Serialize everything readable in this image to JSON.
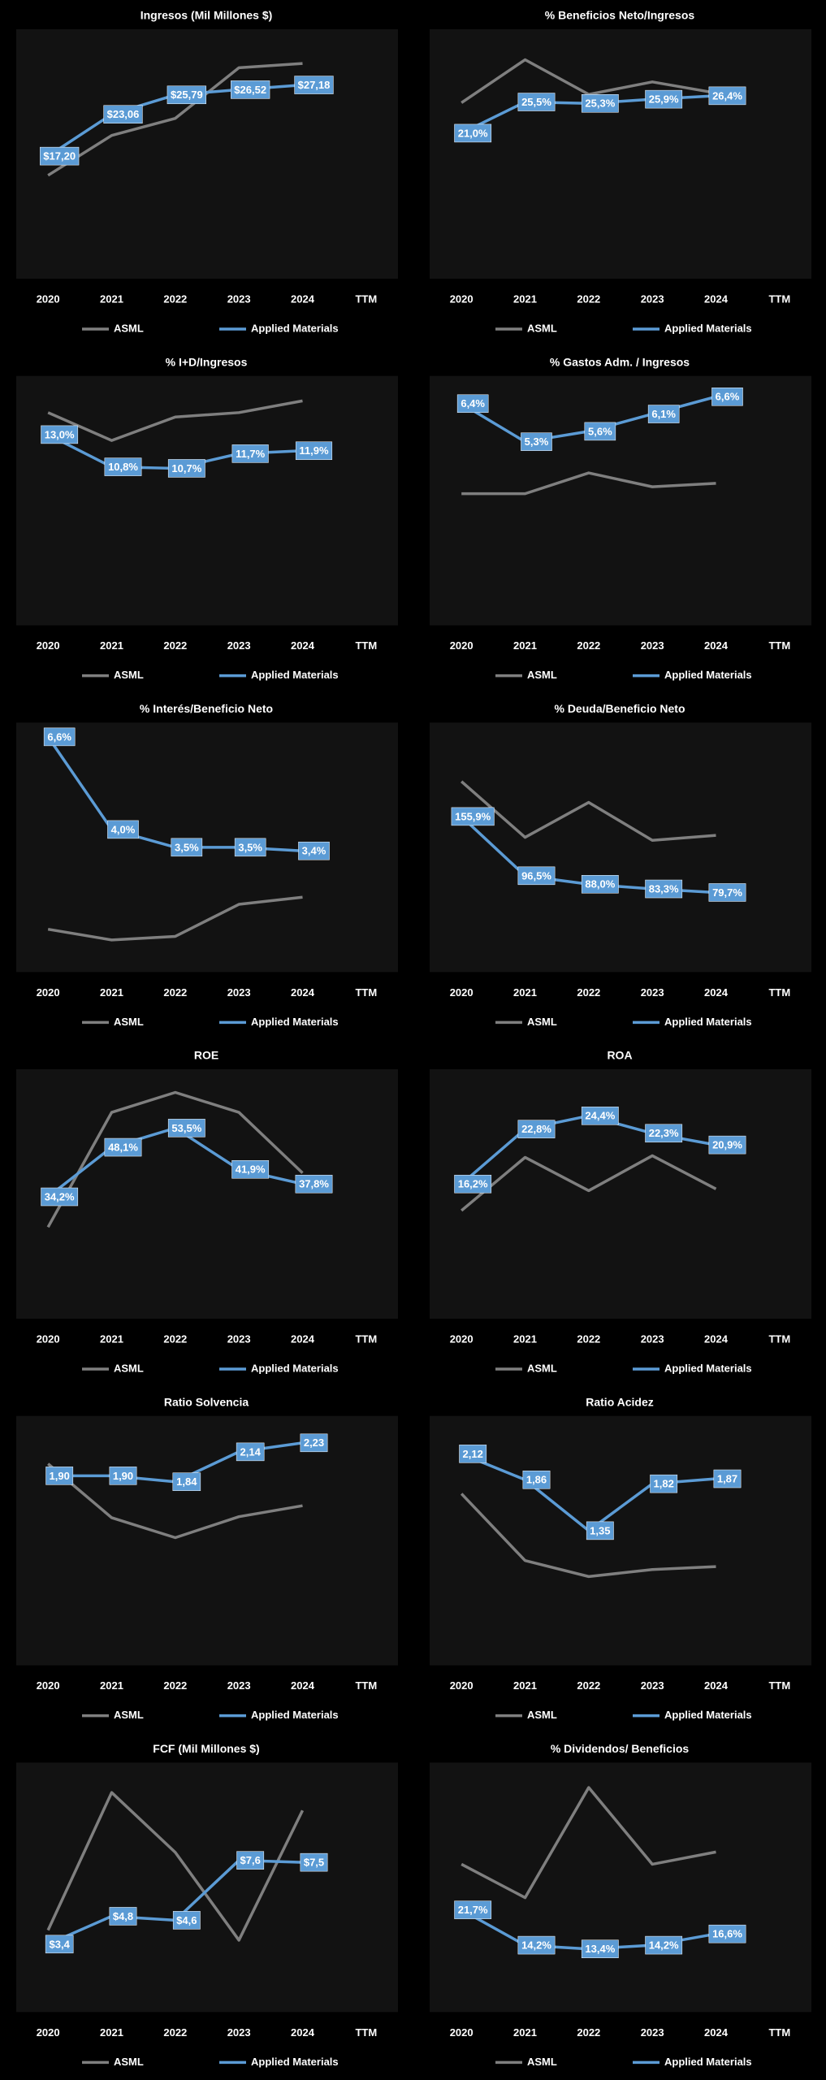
{
  "chart_data": [
    {
      "type": "line",
      "title": "Ingresos (Mil Millones $)",
      "categories": [
        "2020",
        "2021",
        "2022",
        "2023",
        "2024",
        "TTM"
      ],
      "ylim": [
        0,
        35
      ],
      "series": [
        {
          "name": "ASML",
          "color": "#7f7f7f",
          "values": [
            14.5,
            20.1,
            22.5,
            29.6,
            30.2,
            null
          ]
        },
        {
          "name": "Applied Materials",
          "color": "#5b9bd5",
          "values": [
            17.2,
            23.06,
            25.79,
            26.52,
            27.18,
            null
          ],
          "value_labels": [
            "$17,20",
            "$23,06",
            "$25,79",
            "$26,52",
            "$27,18",
            null
          ]
        }
      ]
    },
    {
      "type": "line",
      "title": "% Beneficios Neto/Ingresos",
      "categories": [
        "2020",
        "2021",
        "2022",
        "2023",
        "2024",
        "TTM"
      ],
      "ylim": [
        0,
        36
      ],
      "series": [
        {
          "name": "ASML",
          "color": "#7f7f7f",
          "values": [
            25.4,
            31.6,
            26.6,
            28.4,
            26.8,
            null
          ]
        },
        {
          "name": "Applied Materials",
          "color": "#5b9bd5",
          "values": [
            21.0,
            25.5,
            25.3,
            25.9,
            26.4,
            null
          ],
          "value_labels": [
            "21,0%",
            "25,5%",
            "25,3%",
            "25,9%",
            "26,4%",
            null
          ]
        }
      ]
    },
    {
      "type": "line",
      "title": "% I+D/Ingresos",
      "categories": [
        "2020",
        "2021",
        "2022",
        "2023",
        "2024",
        "TTM"
      ],
      "ylim": [
        0,
        17
      ],
      "series": [
        {
          "name": "ASML",
          "color": "#7f7f7f",
          "values": [
            14.5,
            12.6,
            14.2,
            14.5,
            15.3,
            null
          ]
        },
        {
          "name": "Applied Materials",
          "color": "#5b9bd5",
          "values": [
            13.0,
            10.8,
            10.7,
            11.7,
            11.9,
            null
          ],
          "value_labels": [
            "13,0%",
            "10,8%",
            "10,7%",
            "11,7%",
            "11,9%",
            null
          ]
        }
      ]
    },
    {
      "type": "line",
      "title": "% Gastos Adm. / Ingresos",
      "categories": [
        "2020",
        "2021",
        "2022",
        "2023",
        "2024",
        "TTM"
      ],
      "ylim": [
        0,
        7.2
      ],
      "series": [
        {
          "name": "ASML",
          "color": "#7f7f7f",
          "values": [
            3.8,
            3.8,
            4.4,
            4.0,
            4.1,
            null
          ]
        },
        {
          "name": "Applied Materials",
          "color": "#5b9bd5",
          "values": [
            6.4,
            5.3,
            5.6,
            6.1,
            6.6,
            null
          ],
          "value_labels": [
            "6,4%",
            "5,3%",
            "5,6%",
            "6,1%",
            "6,6%",
            null
          ]
        }
      ]
    },
    {
      "type": "line",
      "title": "% Interés/Beneficio Neto",
      "categories": [
        "2020",
        "2021",
        "2022",
        "2023",
        "2024",
        "TTM"
      ],
      "ylim": [
        0,
        7
      ],
      "series": [
        {
          "name": "ASML",
          "color": "#7f7f7f",
          "values": [
            1.2,
            0.9,
            1.0,
            1.9,
            2.1,
            null
          ]
        },
        {
          "name": "Applied Materials",
          "color": "#5b9bd5",
          "values": [
            6.6,
            4.0,
            3.5,
            3.5,
            3.4,
            null
          ],
          "value_labels": [
            "6,6%",
            "4,0%",
            "3,5%",
            "3,5%",
            "3,4%",
            null
          ]
        }
      ]
    },
    {
      "type": "line",
      "title": "% Deuda/Beneficio Neto",
      "categories": [
        "2020",
        "2021",
        "2022",
        "2023",
        "2024",
        "TTM"
      ],
      "ylim": [
        0,
        250
      ],
      "series": [
        {
          "name": "ASML",
          "color": "#7f7f7f",
          "values": [
            191,
            135,
            170,
            132,
            137,
            null
          ]
        },
        {
          "name": "Applied Materials",
          "color": "#5b9bd5",
          "values": [
            155.9,
            96.5,
            88.0,
            83.3,
            79.7,
            null
          ],
          "value_labels": [
            "155,9%",
            "96,5%",
            "88,0%",
            "83,3%",
            "79,7%",
            null
          ]
        }
      ]
    },
    {
      "type": "line",
      "title": "ROE",
      "categories": [
        "2020",
        "2021",
        "2022",
        "2023",
        "2024",
        "TTM"
      ],
      "ylim": [
        0,
        70
      ],
      "series": [
        {
          "name": "ASML",
          "color": "#7f7f7f",
          "values": [
            25.7,
            57.9,
            63.5,
            57.9,
            40.9,
            null
          ]
        },
        {
          "name": "Applied Materials",
          "color": "#5b9bd5",
          "values": [
            34.2,
            48.1,
            53.5,
            41.9,
            37.8,
            null
          ],
          "value_labels": [
            "34,2%",
            "48,1%",
            "53,5%",
            "41,9%",
            "37,8%",
            null
          ]
        }
      ]
    },
    {
      "type": "line",
      "title": "ROA",
      "categories": [
        "2020",
        "2021",
        "2022",
        "2023",
        "2024",
        "TTM"
      ],
      "ylim": [
        0,
        30
      ],
      "series": [
        {
          "name": "ASML",
          "color": "#7f7f7f",
          "values": [
            13.0,
            19.4,
            15.4,
            19.6,
            15.6,
            null
          ]
        },
        {
          "name": "Applied Materials",
          "color": "#5b9bd5",
          "values": [
            16.2,
            22.8,
            24.4,
            22.3,
            20.9,
            null
          ],
          "value_labels": [
            "16,2%",
            "22,8%",
            "24,4%",
            "22,3%",
            "20,9%",
            null
          ]
        }
      ]
    },
    {
      "type": "line",
      "title": "Ratio Solvencia",
      "categories": [
        "2020",
        "2021",
        "2022",
        "2023",
        "2024",
        "TTM"
      ],
      "ylim": [
        0,
        2.5
      ],
      "series": [
        {
          "name": "ASML",
          "color": "#7f7f7f",
          "values": [
            2.02,
            1.48,
            1.28,
            1.49,
            1.6,
            null
          ]
        },
        {
          "name": "Applied Materials",
          "color": "#5b9bd5",
          "values": [
            1.9,
            1.9,
            1.84,
            2.14,
            2.23,
            null
          ],
          "value_labels": [
            "1,90",
            "1,90",
            "1,84",
            "2,14",
            "2,23",
            null
          ]
        }
      ]
    },
    {
      "type": "line",
      "title": "Ratio Acidez",
      "categories": [
        "2020",
        "2021",
        "2022",
        "2023",
        "2024",
        "TTM"
      ],
      "ylim": [
        0,
        2.5
      ],
      "series": [
        {
          "name": "ASML",
          "color": "#7f7f7f",
          "values": [
            1.72,
            1.05,
            0.89,
            0.96,
            0.99,
            null
          ]
        },
        {
          "name": "Applied Materials",
          "color": "#5b9bd5",
          "values": [
            2.12,
            1.86,
            1.35,
            1.82,
            1.87,
            null
          ],
          "value_labels": [
            "2,12",
            "1,86",
            "1,35",
            "1,82",
            "1,87",
            null
          ]
        }
      ]
    },
    {
      "type": "line",
      "title": "FCF (Mil Millones $)",
      "categories": [
        "2020",
        "2021",
        "2022",
        "2023",
        "2024",
        "TTM"
      ],
      "ylim": [
        0,
        12.5
      ],
      "series": [
        {
          "name": "ASML",
          "color": "#7f7f7f",
          "values": [
            4.1,
            11.0,
            8.0,
            3.6,
            10.1,
            null
          ]
        },
        {
          "name": "Applied Materials",
          "color": "#5b9bd5",
          "values": [
            3.4,
            4.8,
            4.6,
            7.6,
            7.5,
            null
          ],
          "value_labels": [
            "$3,4",
            "$4,8",
            "$4,6",
            "$7,6",
            "$7,5",
            null
          ]
        }
      ]
    },
    {
      "type": "line",
      "title": "% Dividendos/ Beneficios",
      "categories": [
        "2020",
        "2021",
        "2022",
        "2023",
        "2024",
        "TTM"
      ],
      "ylim": [
        0,
        53
      ],
      "series": [
        {
          "name": "ASML",
          "color": "#7f7f7f",
          "values": [
            31.4,
            24.3,
            47.7,
            31.4,
            34.0,
            null
          ]
        },
        {
          "name": "Applied Materials",
          "color": "#5b9bd5",
          "values": [
            21.7,
            14.2,
            13.4,
            14.2,
            16.6,
            null
          ],
          "value_labels": [
            "21,7%",
            "14,2%",
            "13,4%",
            "14,2%",
            "16,6%",
            null
          ]
        }
      ]
    }
  ]
}
